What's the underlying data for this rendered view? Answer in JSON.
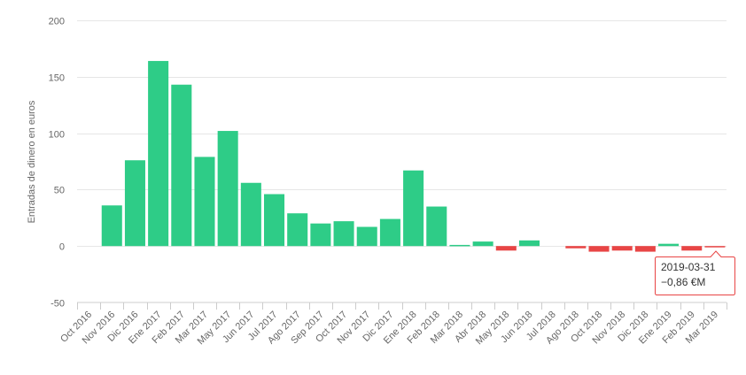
{
  "chart_data": {
    "type": "bar",
    "ylabel": "Entradas de dinero en euros",
    "ylim": [
      -50,
      200
    ],
    "yticks": [
      -50,
      0,
      50,
      100,
      150,
      200
    ],
    "grid": true,
    "categories": [
      "Oct 2016",
      "Nov 2016",
      "Dic 2016",
      "Ene 2017",
      "Feb 2017",
      "Mar 2017",
      "May 2017",
      "Jun 2017",
      "Jul 2017",
      "Ago 2017",
      "Sep 2017",
      "Oct 2017",
      "Nov 2017",
      "Dic 2017",
      "Ene 2018",
      "Feb 2018",
      "Mar 2018",
      "Abr 2018",
      "May 2018",
      "Jun 2018",
      "Jul 2018",
      "Ago 2018",
      "Oct 2018",
      "Nov 2018",
      "Dic 2018",
      "Ene 2019",
      "Feb 2019",
      "Mar 2019"
    ],
    "values": [
      0,
      36,
      76,
      164,
      143,
      79,
      102,
      56,
      46,
      29,
      20,
      22,
      17,
      24,
      67,
      35,
      1,
      4,
      -4,
      5,
      0,
      -2,
      -5,
      -4,
      -5,
      2,
      -4,
      -0.86
    ],
    "colors": {
      "positive": "#2ecc87",
      "negative": "#e84545",
      "tooltip_border": "#e84545"
    },
    "tooltip": {
      "date": "2019-03-31",
      "value": "−0,86 €M"
    }
  }
}
